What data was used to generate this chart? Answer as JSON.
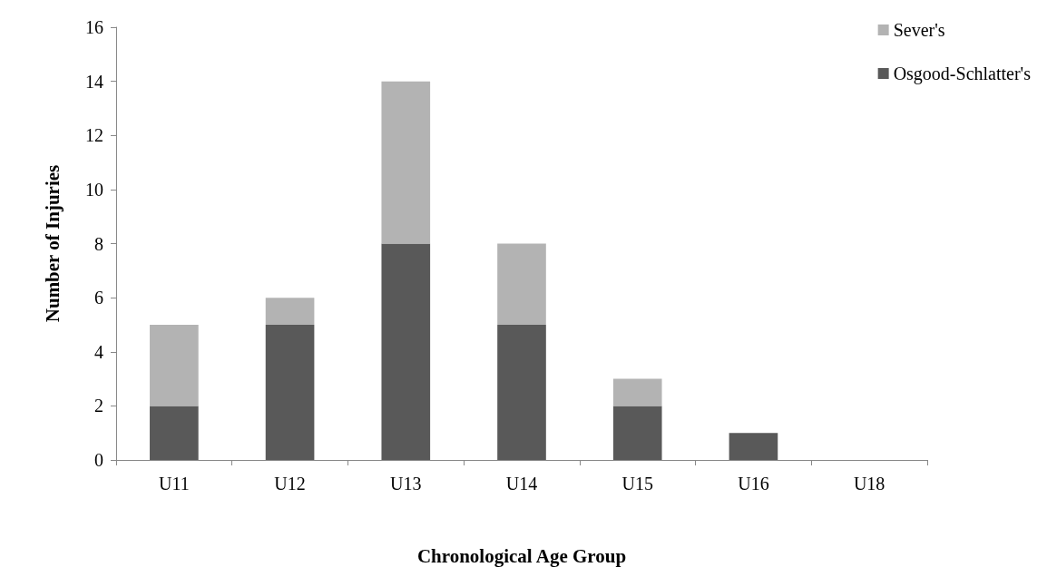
{
  "chart_data": {
    "type": "bar",
    "stacked": true,
    "xlabel": "Chronological Age Group",
    "ylabel": "Number of Injuries",
    "categories": [
      "U11",
      "U12",
      "U13",
      "U14",
      "U15",
      "U16",
      "U18"
    ],
    "series": [
      {
        "name": "Osgood-Schlatter's",
        "color": "#595959",
        "values": [
          2,
          5,
          8,
          5,
          2,
          1,
          0
        ]
      },
      {
        "name": "Sever's",
        "color": "#b3b3b3",
        "values": [
          3,
          1,
          6,
          3,
          1,
          0,
          0
        ]
      }
    ],
    "ylim": [
      0,
      16
    ],
    "yticks": [
      0,
      2,
      4,
      6,
      8,
      10,
      12,
      14,
      16
    ],
    "grid": false,
    "legend": "top right"
  }
}
